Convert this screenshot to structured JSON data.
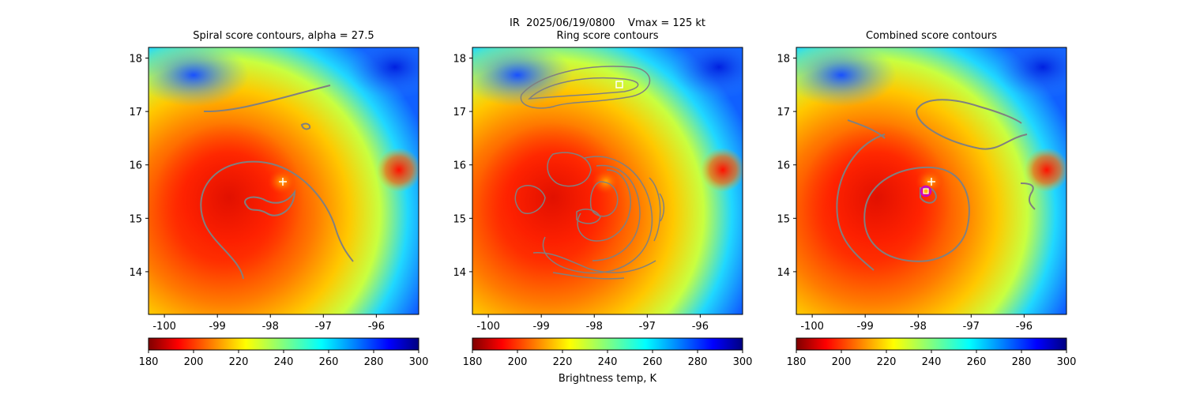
{
  "figure": {
    "suptitle": "IR  2025/06/19/0800    Vmax = 125 kt",
    "colorbar_label": "Brightness temp, K",
    "colormap": "jet_r",
    "marker_color": "#ffffff",
    "contour_color": "#808080",
    "center_marker_color": "#c800c8"
  },
  "chart_data": [
    {
      "type": "heatmap",
      "title": "Spiral score contours, alpha = 27.5",
      "xlim": [
        -100.3,
        -95.2
      ],
      "ylim": [
        13.2,
        18.2
      ],
      "xticks": [
        "-100",
        "-99",
        "-98",
        "-97",
        "-96"
      ],
      "yticks": [
        "14",
        "15",
        "16",
        "17",
        "18"
      ],
      "best_track_marker": {
        "symbol": "+",
        "lon": -97.75,
        "lat": 15.7
      },
      "colorbar": {
        "vmin": 180,
        "vmax": 300,
        "ticks": [
          "180",
          "200",
          "220",
          "240",
          "260",
          "280",
          "300"
        ]
      }
    },
    {
      "type": "heatmap",
      "title": "Ring score contours",
      "xlim": [
        -100.3,
        -95.2
      ],
      "ylim": [
        13.2,
        18.2
      ],
      "xticks": [
        "-100",
        "-99",
        "-98",
        "-97",
        "-96"
      ],
      "yticks": [
        "14",
        "15",
        "16",
        "17",
        "18"
      ],
      "max_score_marker": {
        "symbol": "square",
        "lon": -97.5,
        "lat": 17.5
      },
      "colorbar": {
        "vmin": 180,
        "vmax": 300,
        "ticks": [
          "180",
          "200",
          "220",
          "240",
          "260",
          "280",
          "300"
        ]
      }
    },
    {
      "type": "heatmap",
      "title": "Combined score contours",
      "xlim": [
        -100.3,
        -95.2
      ],
      "ylim": [
        13.2,
        18.2
      ],
      "xticks": [
        "-100",
        "-99",
        "-98",
        "-97",
        "-96"
      ],
      "yticks": [
        "14",
        "15",
        "16",
        "17",
        "18"
      ],
      "best_track_marker": {
        "symbol": "+",
        "lon": -97.75,
        "lat": 15.7
      },
      "max_score_marker": {
        "symbol": "square",
        "lon": -97.88,
        "lat": 15.52
      },
      "colorbar": {
        "vmin": 180,
        "vmax": 300,
        "ticks": [
          "180",
          "200",
          "220",
          "240",
          "260",
          "280",
          "300"
        ]
      }
    }
  ]
}
